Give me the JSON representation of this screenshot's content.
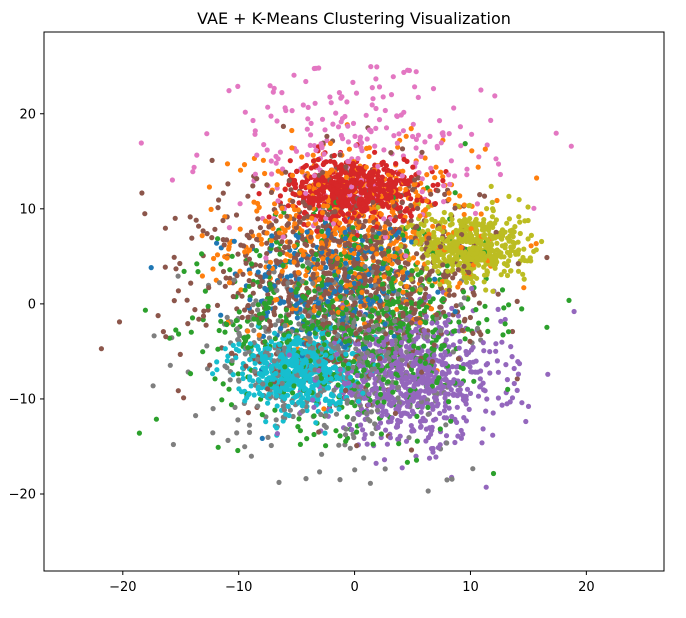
{
  "chart_data": {
    "type": "scatter",
    "title": "VAE + K-Means Clustering Visualization",
    "xlabel": "",
    "ylabel": "",
    "xlim": [
      -26.8,
      26.7
    ],
    "ylim": [
      -28.1,
      28.6
    ],
    "xticks": [
      -20,
      -10,
      0,
      10,
      20
    ],
    "yticks": [
      -20,
      -10,
      0,
      10,
      20
    ],
    "xtick_labels": [
      "−20",
      "−10",
      "0",
      "10",
      "20"
    ],
    "ytick_labels": [
      "−20",
      "−10",
      "0",
      "10",
      "20"
    ],
    "grid": false,
    "legend": "none",
    "series": [
      {
        "color": "#1f77b4",
        "center": [
          -2,
          2
        ],
        "spread": [
          7.0,
          7.0
        ],
        "count": 260
      },
      {
        "color": "#ff7f0e",
        "center": [
          0,
          7
        ],
        "spread": [
          9.5,
          8.5
        ],
        "count": 560
      },
      {
        "color": "#2ca02c",
        "center": [
          0,
          -2
        ],
        "spread": [
          10.5,
          10.0
        ],
        "count": 760
      },
      {
        "color": "#d62728",
        "center": [
          0,
          12
        ],
        "spread": [
          5.0,
          3.0
        ],
        "count": 620
      },
      {
        "color": "#9467bd",
        "center": [
          5,
          -8
        ],
        "spread": [
          7.0,
          6.0
        ],
        "count": 720
      },
      {
        "color": "#8c564b",
        "center": [
          -1,
          3
        ],
        "spread": [
          10.5,
          9.5
        ],
        "count": 900
      },
      {
        "color": "#e377c2",
        "center": [
          0,
          16
        ],
        "spread": [
          11.0,
          8.0
        ],
        "count": 240
      },
      {
        "color": "#7f7f7f",
        "center": [
          -2,
          -5
        ],
        "spread": [
          9.5,
          9.0
        ],
        "count": 520
      },
      {
        "color": "#bcbd22",
        "center": [
          10,
          6
        ],
        "spread": [
          4.5,
          3.5
        ],
        "count": 520
      },
      {
        "color": "#17becf",
        "center": [
          -5,
          -7
        ],
        "spread": [
          4.5,
          3.5
        ],
        "count": 620
      }
    ]
  }
}
